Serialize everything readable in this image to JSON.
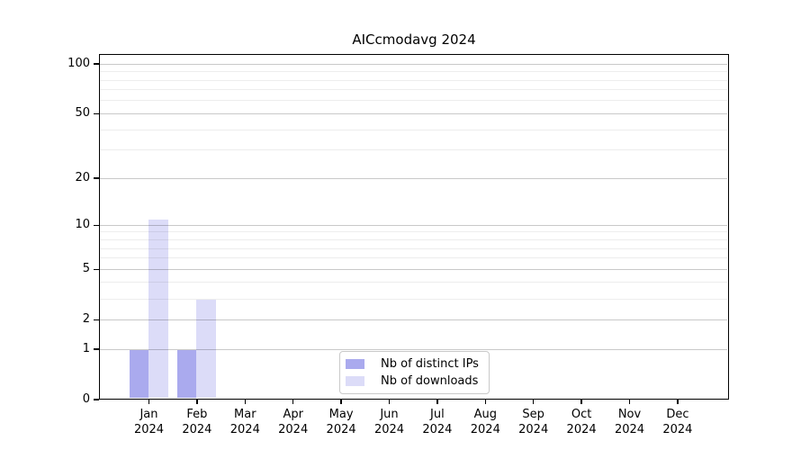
{
  "chart_data": {
    "type": "bar",
    "title": "AICcmodavg 2024",
    "categories": [
      {
        "month": "Jan",
        "year": "2024"
      },
      {
        "month": "Feb",
        "year": "2024"
      },
      {
        "month": "Mar",
        "year": "2024"
      },
      {
        "month": "Apr",
        "year": "2024"
      },
      {
        "month": "May",
        "year": "2024"
      },
      {
        "month": "Jun",
        "year": "2024"
      },
      {
        "month": "Jul",
        "year": "2024"
      },
      {
        "month": "Aug",
        "year": "2024"
      },
      {
        "month": "Sep",
        "year": "2024"
      },
      {
        "month": "Oct",
        "year": "2024"
      },
      {
        "month": "Nov",
        "year": "2024"
      },
      {
        "month": "Dec",
        "year": "2024"
      }
    ],
    "series": [
      {
        "name": "Nb of distinct IPs",
        "color": "#aaaaee",
        "values": [
          1,
          1,
          0,
          0,
          0,
          0,
          0,
          0,
          0,
          0,
          0,
          0
        ]
      },
      {
        "name": "Nb of downloads",
        "color": "#dcdcf8",
        "values": [
          11,
          3,
          0,
          0,
          0,
          0,
          0,
          0,
          0,
          0,
          0,
          0
        ]
      }
    ],
    "y_axis": {
      "scale": "log1p",
      "ticks": [
        0,
        1,
        2,
        5,
        10,
        20,
        50,
        100
      ],
      "minor_gridlines": [
        3,
        4,
        6,
        7,
        8,
        9,
        30,
        40,
        60,
        70,
        80,
        90
      ],
      "max": 115
    },
    "xlabel": "",
    "ylabel": "",
    "legend_position": "bottom-center",
    "colors": {
      "bar_distinct_ips": "#aaaaee",
      "bar_downloads": "#dcdcf8",
      "major_grid": "#c9c9c9",
      "minor_grid": "#ededed",
      "axis": "#000000",
      "background": "#ffffff"
    }
  }
}
